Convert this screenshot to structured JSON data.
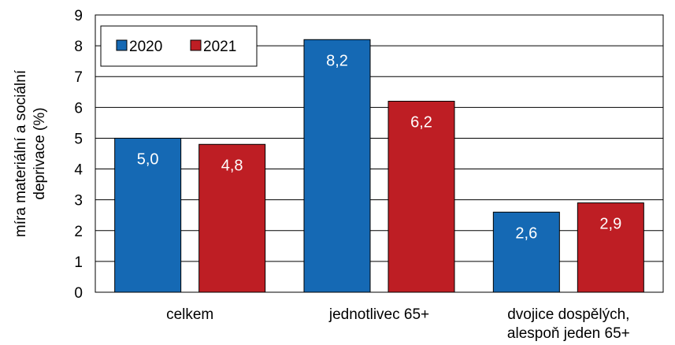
{
  "chart_data": {
    "type": "bar",
    "ylabel": [
      "míra materiální a sociální",
      "deprivace (%)"
    ],
    "categories": [
      [
        "celkem"
      ],
      [
        "jednotlivec 65+"
      ],
      [
        "dvojice dospělých,",
        "alespoň jeden 65+"
      ]
    ],
    "series": [
      {
        "name": "2020",
        "color": "#1569b4",
        "values": [
          5.0,
          8.2,
          2.6
        ],
        "labels": [
          "5,0",
          "8,2",
          "2,6"
        ]
      },
      {
        "name": "2021",
        "color": "#be1e24",
        "values": [
          4.8,
          6.2,
          2.9
        ],
        "labels": [
          "4,8",
          "6,2",
          "2,9"
        ]
      }
    ],
    "ylim": [
      0,
      9
    ],
    "yticks": [
      0,
      1,
      2,
      3,
      4,
      5,
      6,
      7,
      8,
      9
    ],
    "grid": true,
    "legend_position": "top-left"
  }
}
